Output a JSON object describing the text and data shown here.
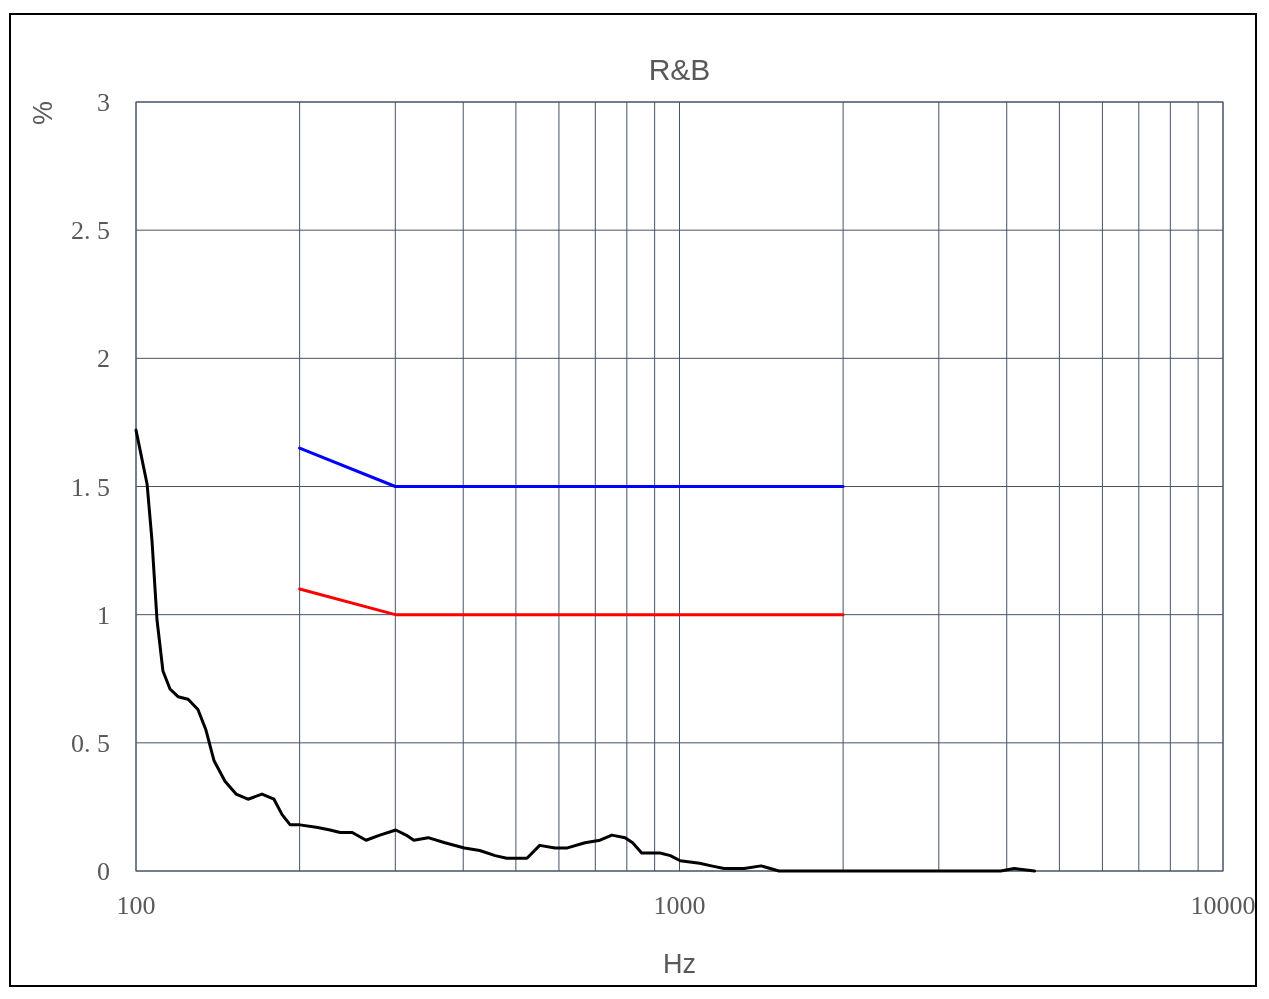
{
  "chart_data": {
    "type": "line",
    "title": "R&B",
    "xlabel": "Hz",
    "ylabel": "%",
    "log": "x",
    "grid": true,
    "marker": "none",
    "line_style": "solid",
    "xlim": [
      100,
      10000
    ],
    "ylim": [
      0,
      3
    ],
    "xticks": [
      100,
      {
        "value": 200,
        "label": null
      },
      {
        "value": 300,
        "label": null
      },
      {
        "value": 400,
        "label": null
      },
      {
        "value": 500,
        "label": null
      },
      {
        "value": 600,
        "label": null
      },
      {
        "value": 700,
        "label": null
      },
      {
        "value": 800,
        "label": null
      },
      {
        "value": 900,
        "label": null
      },
      1000,
      {
        "value": 2000,
        "label": null
      },
      {
        "value": 3000,
        "label": null
      },
      {
        "value": 4000,
        "label": null
      },
      {
        "value": 5000,
        "label": null
      },
      {
        "value": 6000,
        "label": null
      },
      {
        "value": 7000,
        "label": null
      },
      {
        "value": 8000,
        "label": null
      },
      {
        "value": 9000,
        "label": null
      },
      10000
    ],
    "yticks": [
      0,
      {
        "value": 0.5,
        "label": "0. 5"
      },
      1,
      {
        "value": 1.5,
        "label": "1. 5"
      },
      2,
      {
        "value": 2.5,
        "label": "2. 5"
      },
      3
    ],
    "series": [
      {
        "color": "#000000",
        "x": [
          100,
          104.8,
          107,
          109.3,
          112.1,
          115.5,
          119.5,
          124.7,
          130,
          134.5,
          139.2,
          145.8,
          152.8,
          160.7,
          170.5,
          179.4,
          185.7,
          192.2,
          200.2,
          216,
          227.5,
          237.5,
          250,
          265,
          281,
          300.6,
          314,
          324.5,
          344.8,
          370,
          402,
          429,
          458,
          481,
          524,
          553,
          590,
          622,
          670,
          714,
          751,
          794,
          820,
          852,
          921,
          962,
          1003,
          1089,
          1144,
          1208,
          1315,
          1413,
          1524,
          2050,
          3900,
          4130,
          4500
        ],
        "values": [
          1.72,
          1.51,
          1.29,
          0.98,
          0.78,
          0.71,
          0.68,
          0.67,
          0.63,
          0.55,
          0.43,
          0.35,
          0.3,
          0.28,
          0.3,
          0.28,
          0.22,
          0.18,
          0.18,
          0.17,
          0.16,
          0.15,
          0.15,
          0.12,
          0.14,
          0.16,
          0.14,
          0.12,
          0.13,
          0.11,
          0.09,
          0.08,
          0.06,
          0.05,
          0.05,
          0.1,
          0.09,
          0.09,
          0.11,
          0.12,
          0.14,
          0.13,
          0.11,
          0.07,
          0.07,
          0.06,
          0.04,
          0.03,
          0.02,
          0.01,
          0.01,
          0.02,
          0,
          0,
          0,
          0.01,
          0
        ]
      },
      {
        "color": "#0000ff",
        "x": [
          200,
          300,
          2000
        ],
        "values": [
          1.65,
          1.5,
          1.5
        ]
      },
      {
        "color": "#ff0000",
        "x": [
          200,
          300,
          2000
        ],
        "values": [
          1.1,
          1,
          1
        ]
      }
    ]
  }
}
